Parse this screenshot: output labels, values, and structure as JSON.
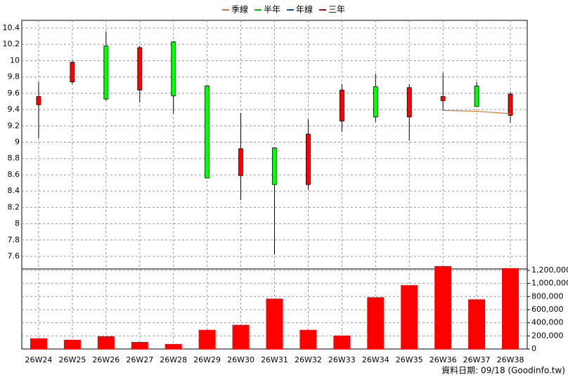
{
  "chart_data": {
    "type": "candlestick",
    "categories": [
      "26W24",
      "26W25",
      "26W26",
      "26W27",
      "26W28",
      "26W29",
      "26W30",
      "26W31",
      "26W32",
      "26W33",
      "26W34",
      "26W35",
      "26W36",
      "26W37",
      "26W38"
    ],
    "open": [
      9.46,
      9.74,
      10.18,
      9.64,
      10.23,
      9.69,
      8.59,
      8.93,
      8.48,
      9.26,
      9.68,
      9.31,
      9.51,
      9.69,
      9.33
    ],
    "high": [
      9.74,
      10.0,
      10.36,
      10.18,
      10.24,
      9.69,
      9.36,
      8.93,
      9.28,
      9.71,
      9.84,
      9.71,
      9.85,
      9.74,
      9.62
    ],
    "low": [
      9.05,
      9.71,
      9.51,
      9.49,
      9.35,
      8.56,
      8.29,
      7.62,
      8.42,
      9.13,
      9.25,
      9.02,
      9.39,
      9.43,
      9.24
    ],
    "close": [
      9.56,
      9.98,
      9.53,
      10.16,
      9.57,
      8.56,
      8.92,
      8.48,
      9.1,
      9.64,
      9.31,
      9.67,
      9.56,
      9.44,
      9.59
    ],
    "up_color": "#ff0000",
    "down_color": "#00ff00",
    "series": [
      {
        "name": "季線",
        "color": "#e07828",
        "values": [
          null,
          null,
          null,
          null,
          null,
          null,
          null,
          null,
          null,
          null,
          null,
          null,
          9.39,
          9.38,
          9.35
        ]
      },
      {
        "name": "半年",
        "color": "#00cc00",
        "values": [
          null,
          null,
          null,
          null,
          null,
          null,
          null,
          null,
          null,
          null,
          null,
          null,
          null,
          null,
          null
        ]
      },
      {
        "name": "年線",
        "color": "#0055cc",
        "values": [
          null,
          null,
          null,
          null,
          null,
          null,
          null,
          null,
          null,
          null,
          null,
          null,
          null,
          null,
          null
        ]
      },
      {
        "name": "三年",
        "color": "#cc0000",
        "values": [
          null,
          null,
          null,
          null,
          null,
          null,
          null,
          null,
          null,
          null,
          null,
          null,
          null,
          null,
          null
        ]
      }
    ],
    "volume": {
      "axis": "y2",
      "color": "#ff0000",
      "values": [
        162000,
        140000,
        195000,
        108000,
        76000,
        292000,
        368000,
        768000,
        292000,
        205000,
        789000,
        973000,
        1265000,
        757000,
        1232000
      ]
    },
    "ylim": [
      7.445,
      10.495
    ],
    "yticks": [
      7.6,
      7.8,
      8,
      8.2,
      8.4,
      8.6,
      8.8,
      9,
      9.2,
      9.4,
      9.6,
      9.8,
      10,
      10.2,
      10.4
    ],
    "y2lim": [
      0,
      1221000
    ],
    "y2ticks": [
      0,
      {
        "value": 200000,
        "label": "200,000"
      },
      {
        "value": 400000,
        "label": "400,000"
      },
      {
        "value": 600000,
        "label": "600,000"
      },
      {
        "value": 800000,
        "label": "800,000"
      },
      {
        "value": 1000000,
        "label": "1,000,000"
      },
      {
        "value": 1200000,
        "label": "1,200,000"
      }
    ],
    "grid": true,
    "source": "資料日期: 09/18  (Goodinfo.tw)"
  }
}
